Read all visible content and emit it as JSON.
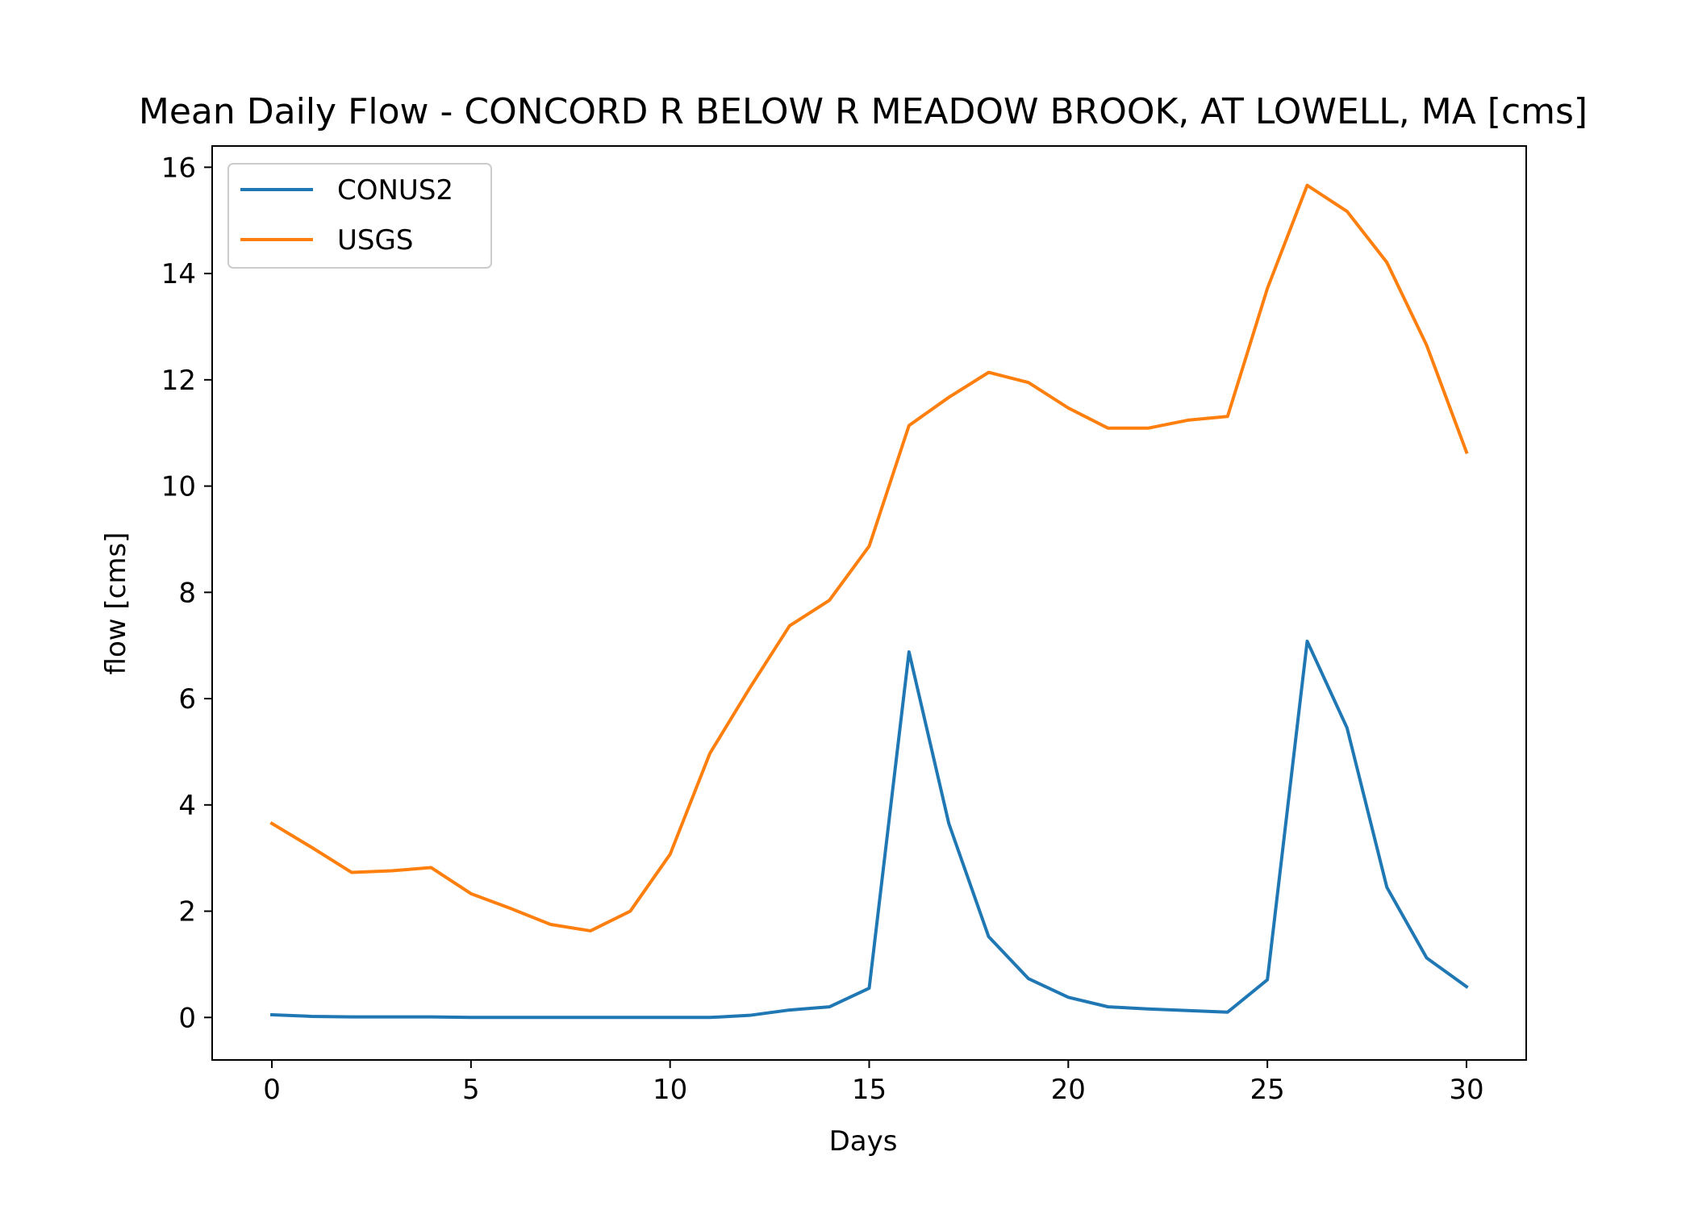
{
  "chart_data": {
    "type": "line",
    "title": "Mean Daily Flow - CONCORD R BELOW R MEADOW BROOK, AT LOWELL, MA [cms]",
    "xlabel": "Days",
    "ylabel": "flow [cms]",
    "xlim": [
      -1.5,
      31.5
    ],
    "ylim": [
      -0.8,
      16.4
    ],
    "xticks": [
      0,
      5,
      10,
      15,
      20,
      25,
      30
    ],
    "xtick_labels": [
      "0",
      "5",
      "10",
      "15",
      "20",
      "25",
      "30"
    ],
    "yticks": [
      0,
      2,
      4,
      6,
      8,
      10,
      12,
      14,
      16
    ],
    "ytick_labels": [
      "0",
      "2",
      "4",
      "6",
      "8",
      "10",
      "12",
      "14",
      "16"
    ],
    "grid": false,
    "legend_position": "top-left",
    "x": [
      0,
      1,
      2,
      3,
      4,
      5,
      6,
      7,
      8,
      9,
      10,
      11,
      12,
      13,
      14,
      15,
      16,
      17,
      18,
      19,
      20,
      21,
      22,
      23,
      24,
      25,
      26,
      27,
      28,
      29,
      30
    ],
    "series": [
      {
        "name": "CONUS2",
        "color": "#1f77b4",
        "values": [
          0.05,
          0.02,
          0.01,
          0.01,
          0.01,
          0.0,
          0.0,
          0.0,
          0.0,
          0.0,
          0.0,
          0.0,
          0.04,
          0.14,
          0.2,
          0.55,
          6.88,
          3.65,
          1.52,
          0.73,
          0.38,
          0.2,
          0.16,
          0.13,
          0.1,
          0.71,
          7.08,
          5.45,
          2.45,
          1.12,
          0.58
        ]
      },
      {
        "name": "USGS",
        "color": "#ff7f0e",
        "values": [
          3.65,
          3.2,
          2.73,
          2.76,
          2.82,
          2.33,
          2.05,
          1.75,
          1.63,
          2.0,
          3.07,
          4.97,
          6.2,
          7.37,
          7.85,
          8.87,
          11.14,
          11.67,
          12.14,
          11.95,
          11.47,
          11.09,
          11.09,
          11.24,
          11.31,
          13.72,
          15.66,
          15.17,
          14.21,
          12.65,
          10.64
        ]
      }
    ]
  }
}
